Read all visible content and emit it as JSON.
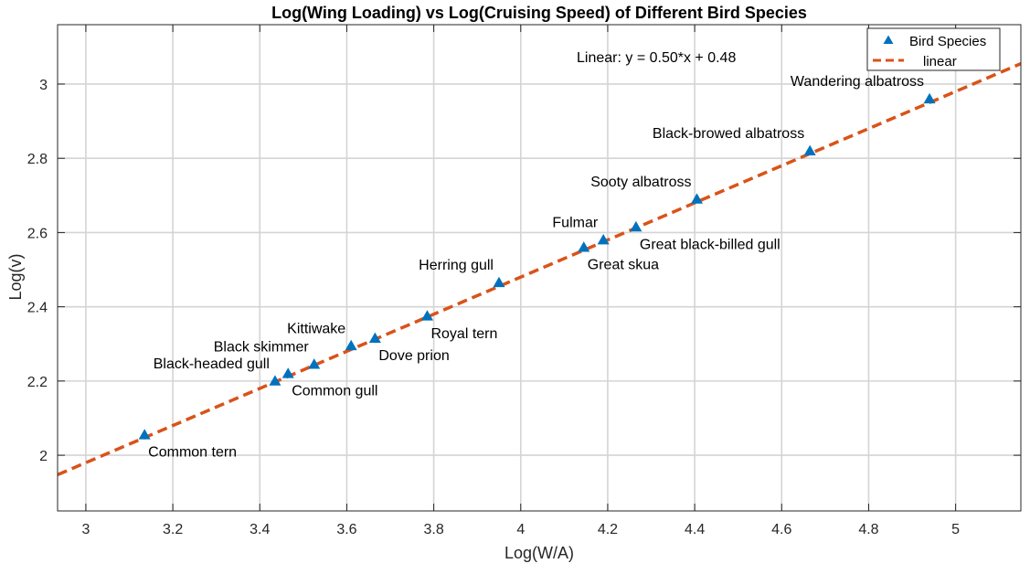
{
  "chart_data": {
    "type": "scatter",
    "title": "Log(Wing Loading) vs Log(Cruising Speed) of Different Bird Species",
    "xlabel": "Log(W/A)",
    "ylabel": "Log(v)",
    "xlim": [
      2.935,
      5.15
    ],
    "ylim": [
      1.85,
      3.16
    ],
    "xticks": [
      3,
      3.2,
      3.4,
      3.6,
      3.8,
      4,
      4.2,
      4.4,
      4.6,
      4.8,
      5
    ],
    "xtick_labels": [
      "3",
      "3.2",
      "3.4",
      "3.6",
      "3.8",
      "4",
      "4.2",
      "4.4",
      "4.6",
      "4.8",
      "5"
    ],
    "yticks": [
      2,
      2.2,
      2.4,
      2.6,
      2.8,
      3
    ],
    "ytick_labels": [
      "2",
      "2.2",
      "2.4",
      "2.6",
      "2.8",
      "3"
    ],
    "grid": true,
    "legend_position": "top-right",
    "legend": {
      "entries": [
        {
          "name": "Bird Species",
          "color": "#0072BD",
          "marker": "triangle"
        },
        {
          "name": "linear",
          "color": "#D95319",
          "style": "dashed"
        }
      ]
    },
    "annotation": "Linear:  y = 0.50*x + 0.48",
    "fit": {
      "slope": 0.5,
      "intercept": 0.48,
      "x_range": [
        2.935,
        5.15
      ],
      "color": "#D95319"
    },
    "marker_color": "#0072BD",
    "points": [
      {
        "name": "Common tern",
        "x": 3.135,
        "y": 2.055,
        "label_side": "below-right"
      },
      {
        "name": "Black-headed gull",
        "x": 3.435,
        "y": 2.2,
        "label_side": "above-left"
      },
      {
        "name": "Common gull",
        "x": 3.465,
        "y": 2.22,
        "label_side": "below-right"
      },
      {
        "name": "Black skimmer",
        "x": 3.525,
        "y": 2.245,
        "label_side": "above-left"
      },
      {
        "name": "Kittiwake",
        "x": 3.61,
        "y": 2.295,
        "label_side": "above-left"
      },
      {
        "name": "Dove prion",
        "x": 3.665,
        "y": 2.315,
        "label_side": "below-right"
      },
      {
        "name": "Royal tern",
        "x": 3.785,
        "y": 2.375,
        "label_side": "below-right"
      },
      {
        "name": "Herring gull",
        "x": 3.95,
        "y": 2.465,
        "label_side": "above-left"
      },
      {
        "name": "Great skua",
        "x": 4.145,
        "y": 2.56,
        "label_side": "below-right"
      },
      {
        "name": "Fulmar",
        "x": 4.19,
        "y": 2.58,
        "label_side": "above-left"
      },
      {
        "name": "Great black-billed gull",
        "x": 4.265,
        "y": 2.615,
        "label_side": "below-right"
      },
      {
        "name": "Sooty albatross",
        "x": 4.405,
        "y": 2.69,
        "label_side": "above-left"
      },
      {
        "name": "Black-browed albatross",
        "x": 4.665,
        "y": 2.82,
        "label_side": "above-left"
      },
      {
        "name": "Wandering albatross",
        "x": 4.94,
        "y": 2.96,
        "label_side": "above-left"
      }
    ]
  }
}
